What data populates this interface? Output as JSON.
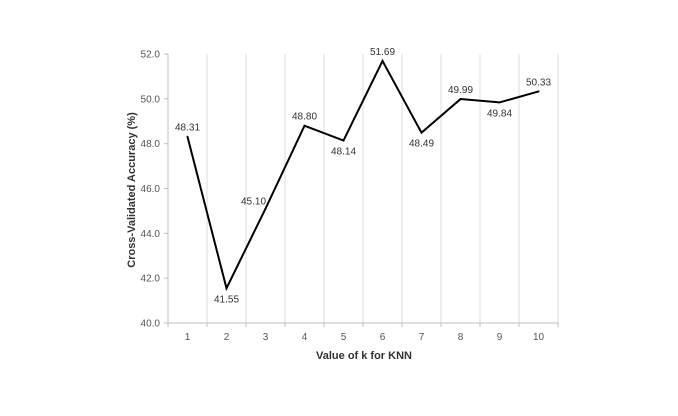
{
  "chart_data": {
    "type": "line",
    "title": "",
    "xlabel": "Value of k for KNN",
    "ylabel": "Cross-Validated Accuracy (%)",
    "x": [
      1,
      2,
      3,
      4,
      5,
      6,
      7,
      8,
      9,
      10
    ],
    "x_tick_labels": [
      "1",
      "2",
      "3",
      "4",
      "5",
      "6",
      "7",
      "8",
      "9",
      "10"
    ],
    "y_tick_labels": [
      "40.0",
      "42.0",
      "44.0",
      "46.0",
      "48.0",
      "50.0",
      "52.0"
    ],
    "series": [
      {
        "values": [
          48.31,
          41.55,
          45.1,
          48.8,
          48.14,
          51.69,
          48.49,
          49.99,
          49.84,
          50.33
        ],
        "data_labels": [
          "48.31",
          "41.55",
          "45.10",
          "48.80",
          "48.14",
          "51.69",
          "48.49",
          "49.99",
          "49.84",
          "50.33"
        ],
        "color": "#000000"
      }
    ],
    "ylim": [
      40,
      52
    ],
    "ystep": 2,
    "grid": "vertical",
    "legend": "none"
  }
}
